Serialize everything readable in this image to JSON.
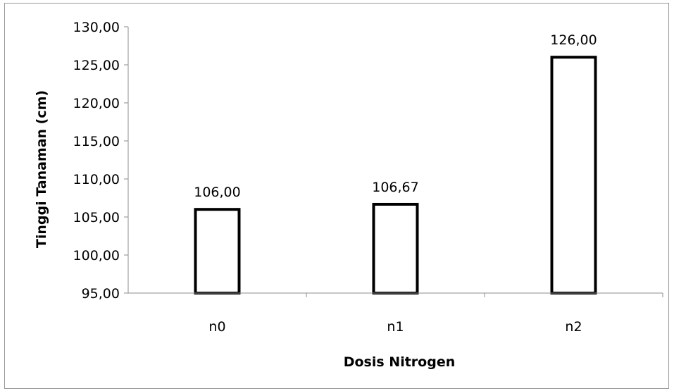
{
  "chart_data": {
    "type": "bar",
    "categories": [
      "n0",
      "n1",
      "n2"
    ],
    "values": [
      106.0,
      106.67,
      126.0
    ],
    "value_labels": [
      "106,00",
      "106,67",
      "126,00"
    ],
    "title": "",
    "xlabel": "Dosis Nitrogen",
    "ylabel": "Tinggi Tanaman (cm)",
    "ylim": [
      95,
      130
    ],
    "yticks": [
      95,
      100,
      105,
      110,
      115,
      120,
      125,
      130
    ],
    "ytick_labels": [
      "95,00",
      "100,00",
      "105,00",
      "110,00",
      "115,00",
      "120,00",
      "125,00",
      "130,00"
    ],
    "grid": false,
    "legend": "none",
    "colors": {
      "bar_fill": "#ffffff",
      "bar_stroke": "#000000",
      "axis": "#8c8c8c"
    }
  }
}
